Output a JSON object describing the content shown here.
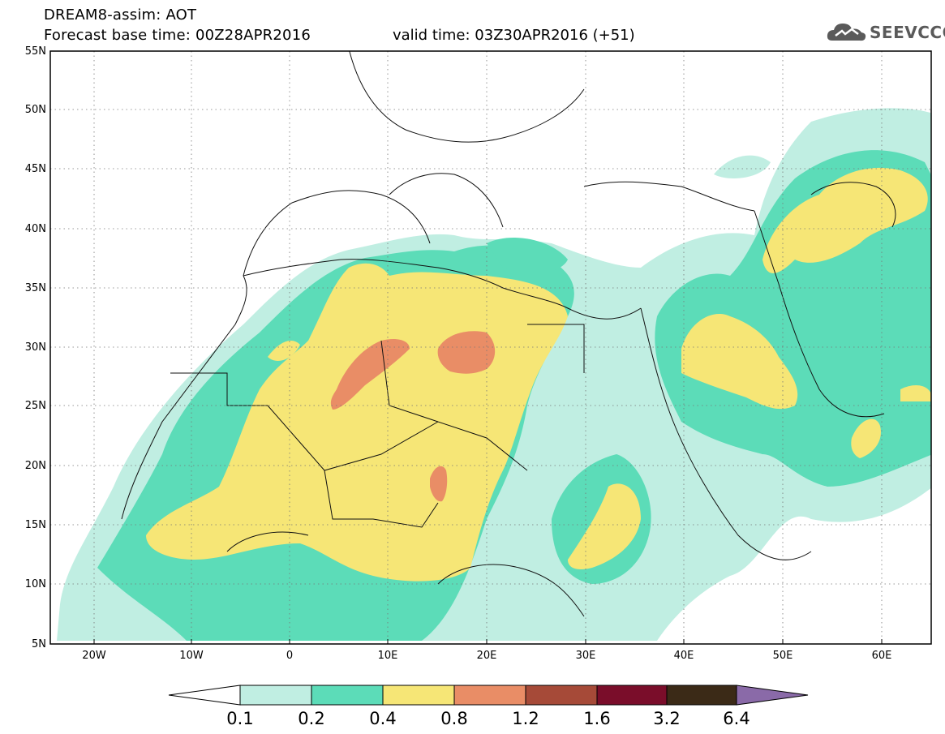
{
  "header": {
    "title": "DREAM8-assim: AOT",
    "base_time": "Forecast base time: 00Z28APR2016",
    "valid_time": "valid time: 03Z30APR2016 (+51)"
  },
  "logo": {
    "text": "SEEVCCC",
    "icon": "cloud-logo-icon",
    "color": "#5a5a5a"
  },
  "map": {
    "lon_range": [
      -25,
      65
    ],
    "lat_range": [
      5,
      55
    ],
    "x_ticks": [
      "20W",
      "10W",
      "0",
      "10E",
      "20E",
      "30E",
      "40E",
      "50E",
      "60E"
    ],
    "x_tick_values": [
      -20,
      -10,
      0,
      10,
      20,
      30,
      40,
      50,
      60
    ],
    "y_ticks": [
      "5N",
      "10N",
      "15N",
      "20N",
      "25N",
      "30N",
      "35N",
      "40N",
      "45N",
      "50N",
      "55N"
    ],
    "y_tick_values": [
      5,
      10,
      15,
      20,
      25,
      30,
      35,
      40,
      45,
      50,
      55
    ],
    "grid": "dotted"
  },
  "colorbar": {
    "labels": [
      "0.1",
      "0.2",
      "0.4",
      "0.8",
      "1.2",
      "1.6",
      "3.2",
      "6.4"
    ],
    "colors": [
      "#ffffff",
      "#c0eee2",
      "#5cdcb8",
      "#f6e676",
      "#e98d66",
      "#a64a38",
      "#7a0d2a",
      "#3b2a17",
      "#8a6aa8"
    ]
  }
}
